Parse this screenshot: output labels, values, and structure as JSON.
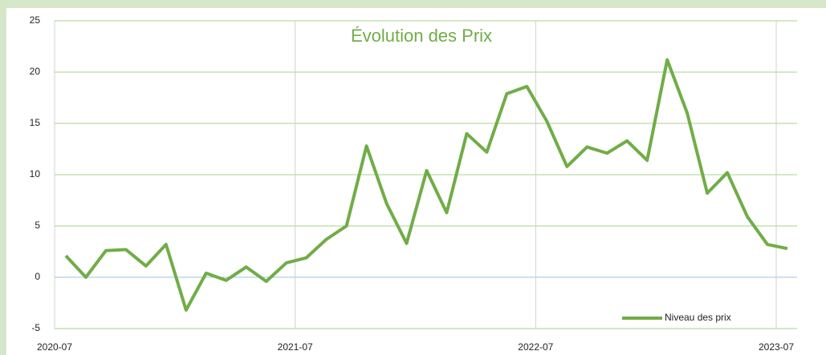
{
  "chart_data": {
    "type": "line",
    "title": "Évolution des Prix",
    "x": [
      "2020-07",
      "2020-08",
      "2020-09",
      "2020-10",
      "2020-11",
      "2020-12",
      "2021-01",
      "2021-02",
      "2021-03",
      "2021-04",
      "2021-05",
      "2021-06",
      "2021-07",
      "2021-08",
      "2021-09",
      "2021-10",
      "2021-11",
      "2021-12",
      "2022-01",
      "2022-02",
      "2022-03",
      "2022-04",
      "2022-05",
      "2022-06",
      "2022-07",
      "2022-08",
      "2022-09",
      "2022-10",
      "2022-11",
      "2022-12",
      "2023-01",
      "2023-02",
      "2023-03",
      "2023-04",
      "2023-05",
      "2023-06",
      "2023-07"
    ],
    "series": [
      {
        "name": "Niveau des prix",
        "color": "#70ad47",
        "values": [
          2.1,
          0.0,
          2.6,
          2.7,
          1.1,
          3.2,
          -3.2,
          0.4,
          -0.3,
          1.0,
          -0.4,
          1.4,
          1.9,
          3.7,
          5.0,
          12.8,
          7.2,
          3.3,
          10.4,
          6.3,
          14.0,
          12.2,
          17.9,
          18.6,
          15.2,
          10.8,
          12.7,
          12.1,
          13.3,
          11.4,
          21.2,
          16.0,
          8.2,
          10.2,
          5.9,
          3.2,
          2.8
        ]
      }
    ],
    "ylim": [
      -5,
      25
    ],
    "yticks": [
      -5,
      0,
      5,
      10,
      15,
      20,
      25
    ],
    "xticks": [
      "2020-07",
      "2021-07",
      "2022-07",
      "2023-07"
    ],
    "grid": true,
    "legend": "lower right"
  }
}
